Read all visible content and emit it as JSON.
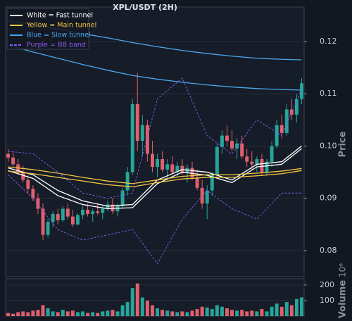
{
  "chart_data": [
    {
      "type": "candlestick",
      "title": "XPL/USDT (2H)",
      "ylabel": "Price",
      "up_color": "#26a69a",
      "down_color": "#e0606e",
      "grid": true,
      "legend": "upper left",
      "ylim": [
        0.075,
        0.1266
      ],
      "yticks": [
        0.08,
        0.09,
        {
          "value": 0.1,
          "label": "0.10"
        },
        0.11,
        0.12
      ],
      "open": [
        0.0985,
        0.0978,
        0.0965,
        0.095,
        0.0935,
        0.0918,
        0.09,
        0.088,
        0.083,
        0.0855,
        0.087,
        0.0858,
        0.088,
        0.0865,
        0.085,
        0.0868,
        0.0878,
        0.087,
        0.0875,
        0.0872,
        0.088,
        0.0888,
        0.0875,
        0.0885,
        0.0915,
        0.095,
        0.108,
        0.101,
        0.104,
        0.0985,
        0.096,
        0.0975,
        0.0955,
        0.0965,
        0.095,
        0.0962,
        0.0948,
        0.0958,
        0.094,
        0.092,
        0.089,
        0.0915,
        0.0945,
        0.0998,
        0.102,
        0.101,
        0.0995,
        0.1005,
        0.098,
        0.097,
        0.0965,
        0.0975,
        0.095,
        0.097,
        0.1,
        0.104,
        0.1025,
        0.107,
        0.106,
        0.109
      ],
      "high": [
        0.0995,
        0.099,
        0.0975,
        0.0962,
        0.0945,
        0.0925,
        0.091,
        0.089,
        0.086,
        0.0875,
        0.088,
        0.0885,
        0.089,
        0.0878,
        0.0872,
        0.0885,
        0.089,
        0.088,
        0.089,
        0.0885,
        0.0895,
        0.09,
        0.089,
        0.092,
        0.096,
        0.109,
        0.114,
        0.106,
        0.105,
        0.101,
        0.0985,
        0.099,
        0.0975,
        0.098,
        0.097,
        0.0975,
        0.0965,
        0.097,
        0.0955,
        0.0935,
        0.0925,
        0.095,
        0.1005,
        0.103,
        0.104,
        0.103,
        0.1015,
        0.102,
        0.0995,
        0.099,
        0.098,
        0.0985,
        0.0975,
        0.101,
        0.105,
        0.106,
        0.108,
        0.109,
        0.11,
        0.113
      ],
      "low": [
        0.097,
        0.096,
        0.0945,
        0.093,
        0.091,
        0.0895,
        0.087,
        0.082,
        0.0825,
        0.0845,
        0.085,
        0.0855,
        0.086,
        0.0845,
        0.0848,
        0.086,
        0.0865,
        0.0855,
        0.0868,
        0.086,
        0.0875,
        0.087,
        0.0865,
        0.088,
        0.0905,
        0.0945,
        0.099,
        0.098,
        0.097,
        0.095,
        0.094,
        0.095,
        0.0935,
        0.0945,
        0.094,
        0.0945,
        0.093,
        0.0935,
        0.0915,
        0.088,
        0.086,
        0.0905,
        0.094,
        0.0985,
        0.1,
        0.099,
        0.0975,
        0.0975,
        0.096,
        0.0955,
        0.095,
        0.0945,
        0.0945,
        0.096,
        0.0995,
        0.1015,
        0.102,
        0.105,
        0.1045,
        0.108
      ],
      "close": [
        0.0978,
        0.0965,
        0.095,
        0.0935,
        0.0918,
        0.09,
        0.088,
        0.083,
        0.0855,
        0.087,
        0.0858,
        0.088,
        0.0865,
        0.085,
        0.0868,
        0.0878,
        0.087,
        0.0875,
        0.0872,
        0.088,
        0.0888,
        0.0875,
        0.0885,
        0.0915,
        0.095,
        0.108,
        0.101,
        0.104,
        0.0985,
        0.096,
        0.0975,
        0.0955,
        0.0965,
        0.095,
        0.0962,
        0.0948,
        0.0958,
        0.094,
        0.092,
        0.089,
        0.0915,
        0.0945,
        0.0998,
        0.102,
        0.101,
        0.0995,
        0.1005,
        0.098,
        0.097,
        0.0965,
        0.0975,
        0.095,
        0.097,
        0.1,
        0.104,
        0.1025,
        0.107,
        0.106,
        0.109,
        0.112
      ],
      "series": [
        {
          "name": "White = Fast tunnel",
          "color": "#ffffff",
          "x": [
            0,
            5,
            10,
            15,
            20,
            25,
            30,
            35,
            40,
            45,
            50,
            55,
            59
          ],
          "upper": [
            0.0958,
            0.0945,
            0.0915,
            0.0895,
            0.0885,
            0.0888,
            0.0935,
            0.0955,
            0.095,
            0.0935,
            0.0965,
            0.097,
            0.1
          ],
          "lower": [
            0.0953,
            0.0938,
            0.0905,
            0.0888,
            0.088,
            0.0882,
            0.0928,
            0.095,
            0.0944,
            0.093,
            0.096,
            0.0965,
            0.0995
          ]
        },
        {
          "name": "Yellow = Main tunnel",
          "color": "#f5c842",
          "x": [
            0,
            5,
            10,
            15,
            20,
            25,
            30,
            35,
            40,
            45,
            50,
            55,
            59
          ],
          "upper": [
            0.096,
            0.0955,
            0.0948,
            0.094,
            0.0933,
            0.0928,
            0.0935,
            0.0942,
            0.0945,
            0.0945,
            0.0948,
            0.0952,
            0.0957
          ],
          "lower": [
            0.0952,
            0.0947,
            0.094,
            0.0933,
            0.0926,
            0.0922,
            0.093,
            0.0937,
            0.094,
            0.094,
            0.0943,
            0.0947,
            0.0953
          ]
        },
        {
          "name": "Blue = Slow tunnel",
          "color": "#4aa8f0",
          "x": [
            0,
            5,
            10,
            15,
            20,
            25,
            30,
            35,
            40,
            45,
            50,
            55,
            59
          ],
          "upper": [
            0.124,
            0.1232,
            0.1224,
            0.1215,
            0.1207,
            0.1198,
            0.119,
            0.1183,
            0.1177,
            0.1172,
            0.1168,
            0.1166,
            0.1165
          ],
          "lower": [
            0.1193,
            0.118,
            0.1168,
            0.1156,
            0.1145,
            0.1135,
            0.1128,
            0.1122,
            0.1117,
            0.1113,
            0.111,
            0.1108,
            0.1107
          ]
        },
        {
          "name": "Purple = BB band",
          "color": "#8a5cf0",
          "dashed": true,
          "x": [
            0,
            5,
            10,
            15,
            20,
            25,
            30,
            35,
            40,
            45,
            50,
            55,
            59
          ],
          "upper": [
            0.099,
            0.0985,
            0.095,
            0.091,
            0.09,
            0.091,
            0.109,
            0.113,
            0.102,
            0.0985,
            0.105,
            0.102,
            0.111
          ],
          "lower": [
            0.0945,
            0.09,
            0.084,
            0.082,
            0.083,
            0.084,
            0.0775,
            0.086,
            0.0915,
            0.088,
            0.086,
            0.091,
            0.091
          ]
        }
      ]
    },
    {
      "type": "bar",
      "ylabel": "Volume",
      "offset_label": "10⁶",
      "grid": true,
      "ylim": [
        0,
        240
      ],
      "yticks": [
        100,
        200
      ],
      "values": [
        20,
        15,
        25,
        30,
        25,
        35,
        40,
        70,
        50,
        30,
        25,
        40,
        30,
        35,
        25,
        30,
        20,
        25,
        20,
        30,
        35,
        40,
        30,
        70,
        90,
        180,
        210,
        120,
        100,
        70,
        50,
        40,
        35,
        30,
        25,
        30,
        25,
        35,
        45,
        60,
        55,
        45,
        70,
        60,
        50,
        40,
        35,
        40,
        30,
        35,
        30,
        45,
        30,
        60,
        80,
        60,
        90,
        70,
        110,
        120
      ]
    }
  ]
}
